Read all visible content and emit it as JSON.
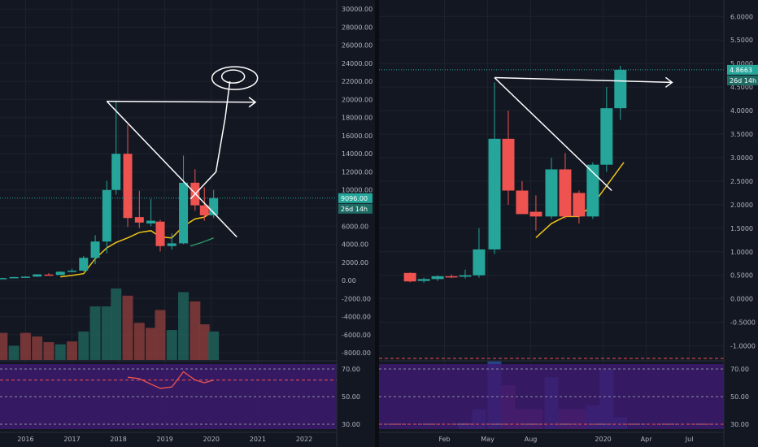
{
  "chart_data": [
    {
      "type": "candlestick",
      "title": "",
      "interval": "monthly",
      "y_axis": {
        "ticks": [
          "30000.00",
          "28000.00",
          "26000.00",
          "24000.00",
          "22000.00",
          "20000.00",
          "18000.00",
          "16000.00",
          "14000.00",
          "12000.00",
          "10000.00",
          "8000.00",
          "6000.00",
          "4000.00",
          "2000.00",
          "0.00",
          "-2000.00",
          "-4000.00",
          "-6000.00",
          "-8000.00"
        ],
        "tick_values": [
          30000,
          28000,
          26000,
          24000,
          22000,
          20000,
          18000,
          16000,
          14000,
          12000,
          10000,
          8000,
          6000,
          4000,
          2000,
          0,
          -2000,
          -4000,
          -6000,
          -8000
        ],
        "range": [
          -8800,
          31000
        ]
      },
      "x_axis": {
        "labels": [
          "2016",
          "2017",
          "2018",
          "2019",
          "2020",
          "2021",
          "2022"
        ],
        "label_positions": [
          2016.0,
          2017.0,
          2018.0,
          2019.0,
          2020.0,
          2021.0,
          2022.0
        ],
        "range": [
          2015.45,
          2022.7
        ]
      },
      "last_price_label": "9096.00",
      "countdown_label": "26d 14h",
      "last_price": 9096,
      "candles": [
        {
          "t": 2015.5,
          "o": 230,
          "h": 300,
          "l": 200,
          "c": 260
        },
        {
          "t": 2015.75,
          "o": 260,
          "h": 400,
          "l": 230,
          "c": 370
        },
        {
          "t": 2016.0,
          "o": 370,
          "h": 460,
          "l": 350,
          "c": 420
        },
        {
          "t": 2016.25,
          "o": 420,
          "h": 700,
          "l": 400,
          "c": 670
        },
        {
          "t": 2016.5,
          "o": 650,
          "h": 800,
          "l": 560,
          "c": 600
        },
        {
          "t": 2016.75,
          "o": 600,
          "h": 1000,
          "l": 580,
          "c": 960
        },
        {
          "t": 2017.0,
          "o": 960,
          "h": 1300,
          "l": 890,
          "c": 1080
        },
        {
          "t": 2017.25,
          "o": 1080,
          "h": 2700,
          "l": 1000,
          "c": 2500
        },
        {
          "t": 2017.5,
          "o": 2500,
          "h": 5000,
          "l": 1800,
          "c": 4300
        },
        {
          "t": 2017.75,
          "o": 4300,
          "h": 11000,
          "l": 3000,
          "c": 10000
        },
        {
          "t": 2017.95,
          "o": 10000,
          "h": 19800,
          "l": 9500,
          "c": 14000
        },
        {
          "t": 2018.2,
          "o": 14000,
          "h": 17200,
          "l": 5900,
          "c": 6900
        },
        {
          "t": 2018.45,
          "o": 7000,
          "h": 9900,
          "l": 5800,
          "c": 6400
        },
        {
          "t": 2018.7,
          "o": 6300,
          "h": 9000,
          "l": 6000,
          "c": 6600
        },
        {
          "t": 2018.9,
          "o": 6500,
          "h": 6700,
          "l": 3200,
          "c": 3800
        },
        {
          "t": 2019.15,
          "o": 3800,
          "h": 5200,
          "l": 3400,
          "c": 4100
        },
        {
          "t": 2019.4,
          "o": 4100,
          "h": 13800,
          "l": 4000,
          "c": 10800
        },
        {
          "t": 2019.65,
          "o": 10800,
          "h": 12300,
          "l": 7700,
          "c": 8300
        },
        {
          "t": 2019.85,
          "o": 8300,
          "h": 10300,
          "l": 6600,
          "c": 7200
        },
        {
          "t": 2020.05,
          "o": 7200,
          "h": 10000,
          "l": 6900,
          "c": 9096
        }
      ],
      "moving_average": [
        {
          "t": 2016.75,
          "v": 400
        },
        {
          "t": 2017.0,
          "v": 550
        },
        {
          "t": 2017.25,
          "v": 750
        },
        {
          "t": 2017.5,
          "v": 2400
        },
        {
          "t": 2017.75,
          "v": 3600
        },
        {
          "t": 2017.95,
          "v": 4200
        },
        {
          "t": 2018.2,
          "v": 4700
        },
        {
          "t": 2018.45,
          "v": 5300
        },
        {
          "t": 2018.7,
          "v": 5500
        },
        {
          "t": 2018.9,
          "v": 4800
        },
        {
          "t": 2019.15,
          "v": 4700
        },
        {
          "t": 2019.4,
          "v": 6000
        },
        {
          "t": 2019.65,
          "v": 6800
        },
        {
          "t": 2019.85,
          "v": 7000
        },
        {
          "t": 2020.05,
          "v": 7700
        }
      ],
      "secondary_average": [
        {
          "t": 2019.55,
          "v": 3800
        },
        {
          "t": 2019.8,
          "v": 4200
        },
        {
          "t": 2020.05,
          "v": 4700
        }
      ],
      "volume_bars": [
        {
          "t": 2015.5,
          "r": 0.38,
          "up": false
        },
        {
          "t": 2015.75,
          "r": 0.2,
          "up": true
        },
        {
          "t": 2016.0,
          "r": 0.38,
          "up": false
        },
        {
          "t": 2016.25,
          "r": 0.33,
          "up": false
        },
        {
          "t": 2016.5,
          "r": 0.25,
          "up": false
        },
        {
          "t": 2016.75,
          "r": 0.22,
          "up": true
        },
        {
          "t": 2017.0,
          "r": 0.26,
          "up": false
        },
        {
          "t": 2017.25,
          "r": 0.4,
          "up": true
        },
        {
          "t": 2017.5,
          "r": 0.75,
          "up": true
        },
        {
          "t": 2017.75,
          "r": 0.75,
          "up": true
        },
        {
          "t": 2017.95,
          "r": 1.0,
          "up": true
        },
        {
          "t": 2018.2,
          "r": 0.9,
          "up": false
        },
        {
          "t": 2018.45,
          "r": 0.52,
          "up": false
        },
        {
          "t": 2018.7,
          "r": 0.45,
          "up": false
        },
        {
          "t": 2018.9,
          "r": 0.7,
          "up": false
        },
        {
          "t": 2019.15,
          "r": 0.42,
          "up": true
        },
        {
          "t": 2019.4,
          "r": 0.95,
          "up": true
        },
        {
          "t": 2019.65,
          "r": 0.82,
          "up": false
        },
        {
          "t": 2019.85,
          "r": 0.5,
          "up": false
        },
        {
          "t": 2020.05,
          "r": 0.4,
          "up": true
        }
      ],
      "oscillator": {
        "ticks": [
          "70.00",
          "50.00",
          "30.00"
        ],
        "tick_values": [
          70,
          50,
          30
        ],
        "range": [
          26.5,
          73.5
        ],
        "reference_level": 62,
        "line": [
          {
            "t": 2018.2,
            "v": 64
          },
          {
            "t": 2018.45,
            "v": 63
          },
          {
            "t": 2018.7,
            "v": 59
          },
          {
            "t": 2018.9,
            "v": 56
          },
          {
            "t": 2019.15,
            "v": 57
          },
          {
            "t": 2019.4,
            "v": 68
          },
          {
            "t": 2019.65,
            "v": 62
          },
          {
            "t": 2019.85,
            "v": 60
          },
          {
            "t": 2020.05,
            "v": 62
          }
        ]
      },
      "drawings": {
        "triangle": [
          {
            "t": 2017.75,
            "v": 19800
          },
          {
            "t": 2020.55,
            "v": 4800
          },
          {
            "t": 2017.75,
            "v": 19800
          },
          {
            "t": 2020.95,
            "v": 19700
          }
        ],
        "path": [
          {
            "t": 2019.55,
            "v": 9000
          },
          {
            "t": 2020.1,
            "v": 12000
          },
          {
            "t": 2020.2,
            "v": 15000
          },
          {
            "t": 2020.3,
            "v": 18000
          },
          {
            "t": 2020.4,
            "v": 22000
          }
        ]
      }
    },
    {
      "type": "candlestick",
      "title": "",
      "interval": "monthly",
      "y_axis": {
        "ticks": [
          "6.0000",
          "5.5000",
          "5.0000",
          "4.5000",
          "4.0000",
          "3.5000",
          "3.0000",
          "2.5000",
          "2.0000",
          "1.5000",
          "1.0000",
          "0.5000",
          "0.0000",
          "-0.5000",
          "-1.0000"
        ],
        "tick_values": [
          6.0,
          5.5,
          5.0,
          4.5,
          4.0,
          3.5,
          3.0,
          2.5,
          2.0,
          1.5,
          1.0,
          0.5,
          0.0,
          -0.5,
          -1.0
        ],
        "range": [
          -1.18,
          6.35
        ]
      },
      "x_axis": {
        "labels": [
          "Feb",
          "May",
          "Aug",
          "2020",
          "Apr",
          "Jul"
        ],
        "label_positions": [
          2019.08,
          2019.33,
          2019.58,
          2020.0,
          2020.25,
          2020.5
        ],
        "range": [
          2018.7,
          2020.7
        ]
      },
      "last_price_label": "4.8663",
      "countdown_label": "26d 14h",
      "last_price": 4.8663,
      "candles": [
        {
          "t": 2018.88,
          "o": 0.55,
          "h": 0.56,
          "l": 0.35,
          "c": 0.37
        },
        {
          "t": 2018.96,
          "o": 0.38,
          "h": 0.45,
          "l": 0.34,
          "c": 0.42
        },
        {
          "t": 2019.04,
          "o": 0.42,
          "h": 0.5,
          "l": 0.38,
          "c": 0.48
        },
        {
          "t": 2019.12,
          "o": 0.48,
          "h": 0.52,
          "l": 0.44,
          "c": 0.46
        },
        {
          "t": 2019.2,
          "o": 0.47,
          "h": 0.62,
          "l": 0.43,
          "c": 0.5
        },
        {
          "t": 2019.28,
          "o": 0.5,
          "h": 1.5,
          "l": 0.45,
          "c": 1.05
        },
        {
          "t": 2019.37,
          "o": 1.05,
          "h": 4.6,
          "l": 0.95,
          "c": 3.4
        },
        {
          "t": 2019.45,
          "o": 3.4,
          "h": 4.0,
          "l": 2.0,
          "c": 2.3
        },
        {
          "t": 2019.53,
          "o": 2.3,
          "h": 2.5,
          "l": 1.8,
          "c": 1.8
        },
        {
          "t": 2019.61,
          "o": 1.85,
          "h": 2.2,
          "l": 1.45,
          "c": 1.75
        },
        {
          "t": 2019.7,
          "o": 1.75,
          "h": 3.0,
          "l": 1.7,
          "c": 2.75
        },
        {
          "t": 2019.78,
          "o": 2.75,
          "h": 3.1,
          "l": 1.7,
          "c": 1.75
        },
        {
          "t": 2019.86,
          "o": 2.25,
          "h": 2.3,
          "l": 1.6,
          "c": 1.75
        },
        {
          "t": 2019.94,
          "o": 1.75,
          "h": 2.9,
          "l": 1.7,
          "c": 2.85
        },
        {
          "t": 2020.02,
          "o": 2.85,
          "h": 4.5,
          "l": 2.7,
          "c": 4.05
        },
        {
          "t": 2020.1,
          "o": 4.05,
          "h": 4.95,
          "l": 3.8,
          "c": 4.8663
        }
      ],
      "moving_average": [
        {
          "t": 2019.61,
          "v": 1.3
        },
        {
          "t": 2019.7,
          "v": 1.6
        },
        {
          "t": 2019.78,
          "v": 1.75
        },
        {
          "t": 2019.86,
          "v": 1.75
        },
        {
          "t": 2019.94,
          "v": 2.0
        },
        {
          "t": 2020.02,
          "v": 2.4
        },
        {
          "t": 2020.12,
          "v": 2.9
        }
      ],
      "volume_bars": [
        {
          "t": 2019.2,
          "r": 0.08,
          "up": true
        },
        {
          "t": 2019.28,
          "r": 0.25,
          "up": true
        },
        {
          "t": 2019.37,
          "r": 0.85,
          "up": true
        },
        {
          "t": 2019.45,
          "r": 0.55,
          "up": false
        },
        {
          "t": 2019.53,
          "r": 0.25,
          "up": false
        },
        {
          "t": 2019.61,
          "r": 0.25,
          "up": false
        },
        {
          "t": 2019.7,
          "r": 0.65,
          "up": true
        },
        {
          "t": 2019.78,
          "r": 0.25,
          "up": false
        },
        {
          "t": 2019.86,
          "r": 0.25,
          "up": false
        },
        {
          "t": 2019.94,
          "r": 0.3,
          "up": true
        },
        {
          "t": 2020.02,
          "r": 0.75,
          "up": true
        },
        {
          "t": 2020.1,
          "r": 0.15,
          "up": true
        }
      ],
      "oscillator": {
        "ticks": [
          "70.00",
          "50.00",
          "30.00"
        ],
        "tick_values": [
          70,
          50,
          30
        ],
        "range": [
          26.5,
          73.5
        ],
        "reference_level": 30
      },
      "drawings": {
        "triangle": [
          {
            "t": 2019.37,
            "v": 4.7
          },
          {
            "t": 2020.05,
            "v": 2.3
          },
          {
            "t": 2019.37,
            "v": 4.7
          },
          {
            "t": 2020.4,
            "v": 4.6
          }
        ]
      }
    }
  ],
  "colors": {
    "background": "#131722",
    "up": "#26a69a",
    "down": "#ef5350",
    "vol_up": "#1f5c55",
    "vol_down": "#7e3838",
    "ma": "#f0c419",
    "ma2": "#2e9e6e",
    "grid": "#1e222d",
    "axis_text": "#b2b5be",
    "osc_bg": "#3d1a6e",
    "osc_line": "#ef5350",
    "drawing": "#ffffff",
    "price_line": "#26a69a",
    "border": "#2a2e39",
    "vol_bar_purple": "#4a3fa8"
  }
}
